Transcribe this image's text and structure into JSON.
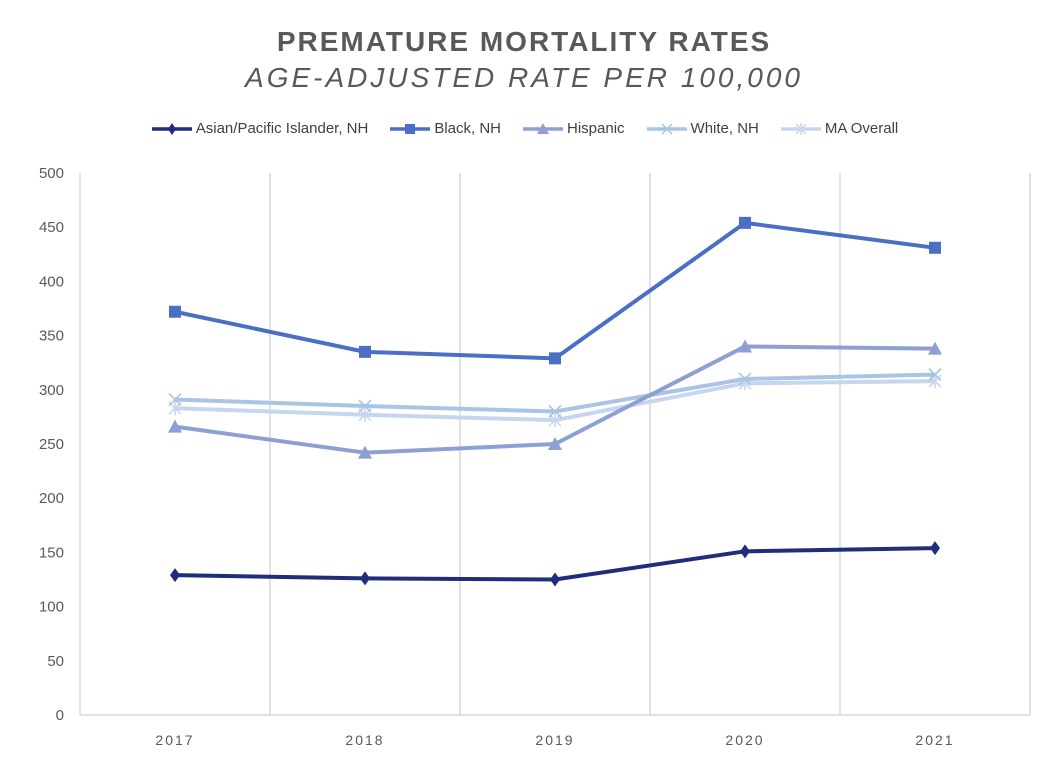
{
  "chart_data": {
    "type": "line",
    "title": "PREMATURE MORTALITY RATES",
    "subtitle": "AGE-ADJUSTED RATE PER 100,000",
    "xlabel": "",
    "ylabel": "",
    "categories": [
      "2017",
      "2018",
      "2019",
      "2020",
      "2021"
    ],
    "ylim": [
      0,
      500
    ],
    "yticks": [
      "0",
      "50",
      "100",
      "150",
      "200",
      "250",
      "300",
      "350",
      "400",
      "450",
      "500"
    ],
    "grid": "vertical",
    "legend_position": "top",
    "series": [
      {
        "name": "Asian/Pacific Islander, NH",
        "color": "#1F2D7A",
        "marker": "diamond",
        "values": [
          129,
          126,
          125,
          151,
          154
        ]
      },
      {
        "name": "Black, NH",
        "color": "#4A6FC4",
        "marker": "square",
        "values": [
          372,
          335,
          329,
          454,
          431
        ]
      },
      {
        "name": "Hispanic",
        "color": "#8CA0D4",
        "marker": "triangle",
        "values": [
          266,
          242,
          250,
          340,
          338
        ]
      },
      {
        "name": "White, NH",
        "color": "#A9C4E4",
        "marker": "x",
        "values": [
          291,
          285,
          280,
          310,
          314
        ]
      },
      {
        "name": "MA Overall",
        "color": "#C5D6EE",
        "marker": "star",
        "values": [
          283,
          277,
          272,
          306,
          308
        ]
      }
    ]
  }
}
